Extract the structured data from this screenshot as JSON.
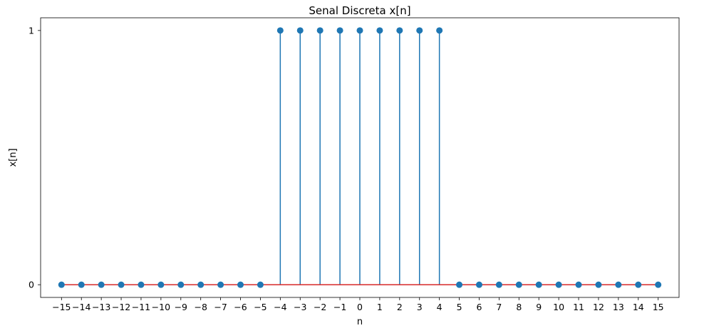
{
  "chart_data": {
    "type": "stem",
    "title": "Senal Discreta x[n]",
    "xlabel": "n",
    "ylabel": "x[n]",
    "x": [
      -15,
      -14,
      -13,
      -12,
      -11,
      -10,
      -9,
      -8,
      -7,
      -6,
      -5,
      -4,
      -3,
      -2,
      -1,
      0,
      1,
      2,
      3,
      4,
      5,
      6,
      7,
      8,
      9,
      10,
      11,
      12,
      13,
      14,
      15
    ],
    "y": [
      0,
      0,
      0,
      0,
      0,
      0,
      0,
      0,
      0,
      0,
      0,
      1,
      1,
      1,
      1,
      1,
      1,
      1,
      1,
      1,
      0,
      0,
      0,
      0,
      0,
      0,
      0,
      0,
      0,
      0,
      0
    ],
    "xticks": [
      -15,
      -14,
      -13,
      -12,
      -11,
      -10,
      -9,
      -8,
      -7,
      -6,
      -5,
      -4,
      -3,
      -2,
      -1,
      0,
      1,
      2,
      3,
      4,
      5,
      6,
      7,
      8,
      9,
      10,
      11,
      12,
      13,
      14,
      15
    ],
    "yticks": [
      0,
      1
    ],
    "xlim": [
      -16.05,
      16.05
    ],
    "ylim": [
      -0.05,
      1.05
    ],
    "grid": false,
    "colors": {
      "stem": "#1f77b4",
      "marker": "#1f77b4",
      "baseline": "#d62728",
      "axes": "#000000"
    }
  }
}
